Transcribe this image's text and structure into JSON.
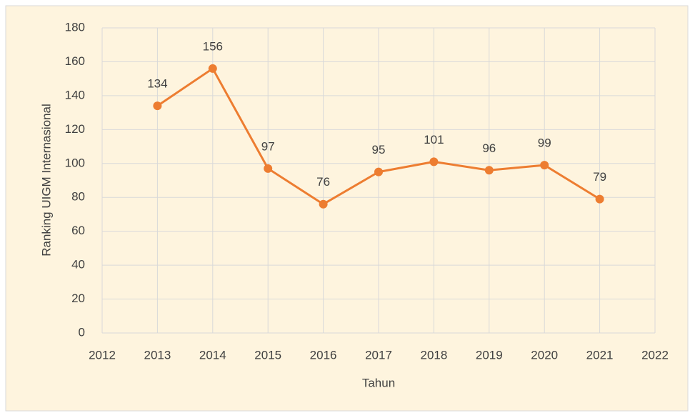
{
  "chart_data": {
    "type": "line",
    "x_label": "Tahun",
    "y_label": "Ranking UIGM Internasional",
    "x": [
      2013,
      2014,
      2015,
      2016,
      2017,
      2018,
      2019,
      2020,
      2021
    ],
    "series": [
      {
        "name": "Ranking UIGM Internasional",
        "color": "#ed7d31",
        "values": [
          134,
          156,
          97,
          76,
          95,
          101,
          96,
          99,
          79
        ]
      }
    ],
    "xlim": [
      2012,
      2022
    ],
    "xticks": [
      2012,
      2013,
      2014,
      2015,
      2016,
      2017,
      2018,
      2019,
      2020,
      2021,
      2022
    ],
    "ylim": [
      0,
      180
    ],
    "yticks": [
      0,
      20,
      40,
      60,
      80,
      100,
      120,
      140,
      160,
      180
    ],
    "grid": true,
    "data_labels": true
  }
}
